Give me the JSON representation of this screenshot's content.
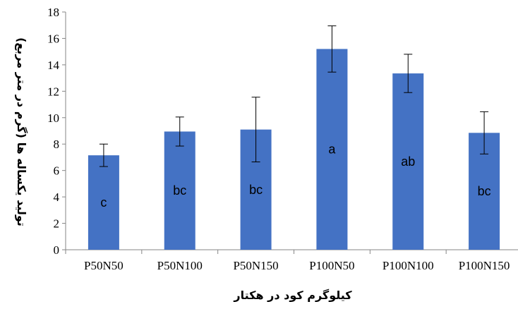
{
  "chart_data": {
    "type": "bar",
    "categories": [
      "P50N50",
      "P50N100",
      "P50N150",
      "P100N50",
      "P100N100",
      "P100N150"
    ],
    "values": [
      7.15,
      8.95,
      9.1,
      15.2,
      13.35,
      8.85
    ],
    "error_low": [
      6.3,
      7.85,
      6.65,
      13.45,
      11.9,
      7.25
    ],
    "error_high": [
      8.0,
      10.05,
      11.55,
      16.95,
      14.8,
      10.45
    ],
    "bar_labels": [
      "c",
      "bc",
      "bc",
      "a",
      "ab",
      "bc"
    ],
    "xlabel": "کیلوگرم کود در هکتار",
    "ylabel": "تولید یکساله ها (گرم در متر مربع)",
    "ylim": [
      0,
      18
    ],
    "yticks": [
      0,
      2,
      4,
      6,
      8,
      10,
      12,
      14,
      16,
      18
    ],
    "grid": false,
    "bar_color": "#4472C4"
  }
}
